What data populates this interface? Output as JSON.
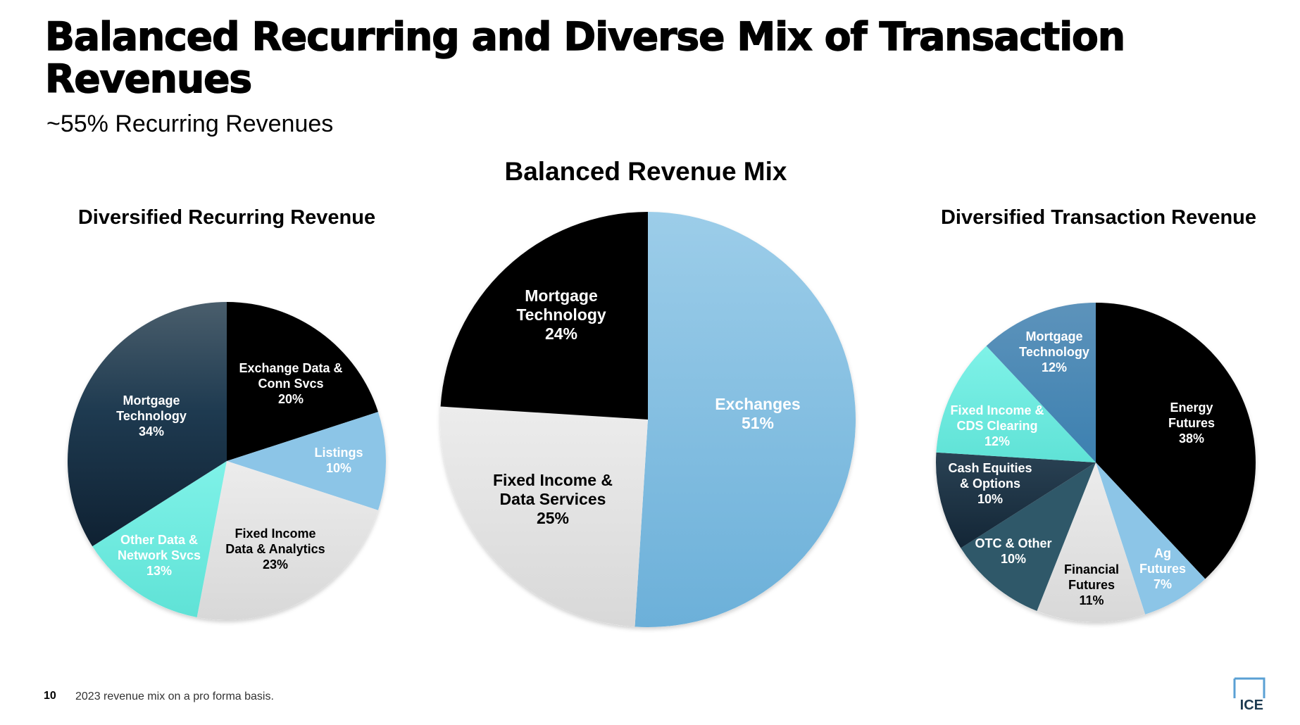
{
  "page": {
    "title": "Balanced Recurring and Diverse Mix of Transaction Revenues",
    "subtitle": "~55% Recurring Revenues",
    "page_number": "10",
    "footnote": "2023 revenue mix on a pro forma basis.",
    "logo_text": "ICE"
  },
  "chart_data": [
    {
      "type": "pie",
      "title": "Diversified Recurring Revenue",
      "slices": [
        {
          "label": "Exchange Data & Conn Svcs",
          "value": 20,
          "text": "20%",
          "color": "#000000",
          "text_color": "#ffffff"
        },
        {
          "label": "Listings",
          "value": 10,
          "text": "10%",
          "color": "#8cc5e7",
          "text_color": "#ffffff"
        },
        {
          "label": "Fixed Income Data & Analytics",
          "value": 23,
          "text": "23%",
          "color": "#e3e3e3",
          "text_color": "#000000"
        },
        {
          "label": "Other Data & Network Svcs",
          "value": 13,
          "text": "13%",
          "color": "#6de9df",
          "text_color": "#ffffff"
        },
        {
          "label": "Mortgage Technology",
          "value": 34,
          "text": "34%",
          "color": "#1c3a50",
          "text_color": "#ffffff"
        }
      ]
    },
    {
      "type": "pie",
      "title": "Balanced Revenue Mix",
      "slices": [
        {
          "label": "Exchanges",
          "value": 51,
          "text": "51%",
          "color": "#86c2e6",
          "text_color": "#ffffff"
        },
        {
          "label": "Fixed Income & Data Services",
          "value": 25,
          "text": "25%",
          "color": "#e3e3e3",
          "text_color": "#000000"
        },
        {
          "label": "Mortgage Technology",
          "value": 24,
          "text": "24%",
          "color": "#000000",
          "text_color": "#ffffff"
        }
      ]
    },
    {
      "type": "pie",
      "title": "Diversified Transaction Revenue",
      "slices": [
        {
          "label": "Energy Futures",
          "value": 38,
          "text": "38%",
          "color": "#000000",
          "text_color": "#ffffff"
        },
        {
          "label": "Ag Futures",
          "value": 7,
          "text": "7%",
          "color": "#8cc5e7",
          "text_color": "#ffffff"
        },
        {
          "label": "Financial Futures",
          "value": 11,
          "text": "11%",
          "color": "#e3e3e3",
          "text_color": "#000000"
        },
        {
          "label": "OTC & Other",
          "value": 10,
          "text": "10%",
          "color": "#2f5869",
          "text_color": "#ffffff"
        },
        {
          "label": "Cash Equities & Options",
          "value": 10,
          "text": "10%",
          "color": "#1b2f3f",
          "text_color": "#ffffff"
        },
        {
          "label": "Fixed Income & CDS Clearing",
          "value": 12,
          "text": "12%",
          "color": "#6de9df",
          "text_color": "#ffffff"
        },
        {
          "label": "Mortgage Technology",
          "value": 12,
          "text": "12%",
          "color": "#4a8ab7",
          "text_color": "#ffffff"
        }
      ]
    }
  ]
}
